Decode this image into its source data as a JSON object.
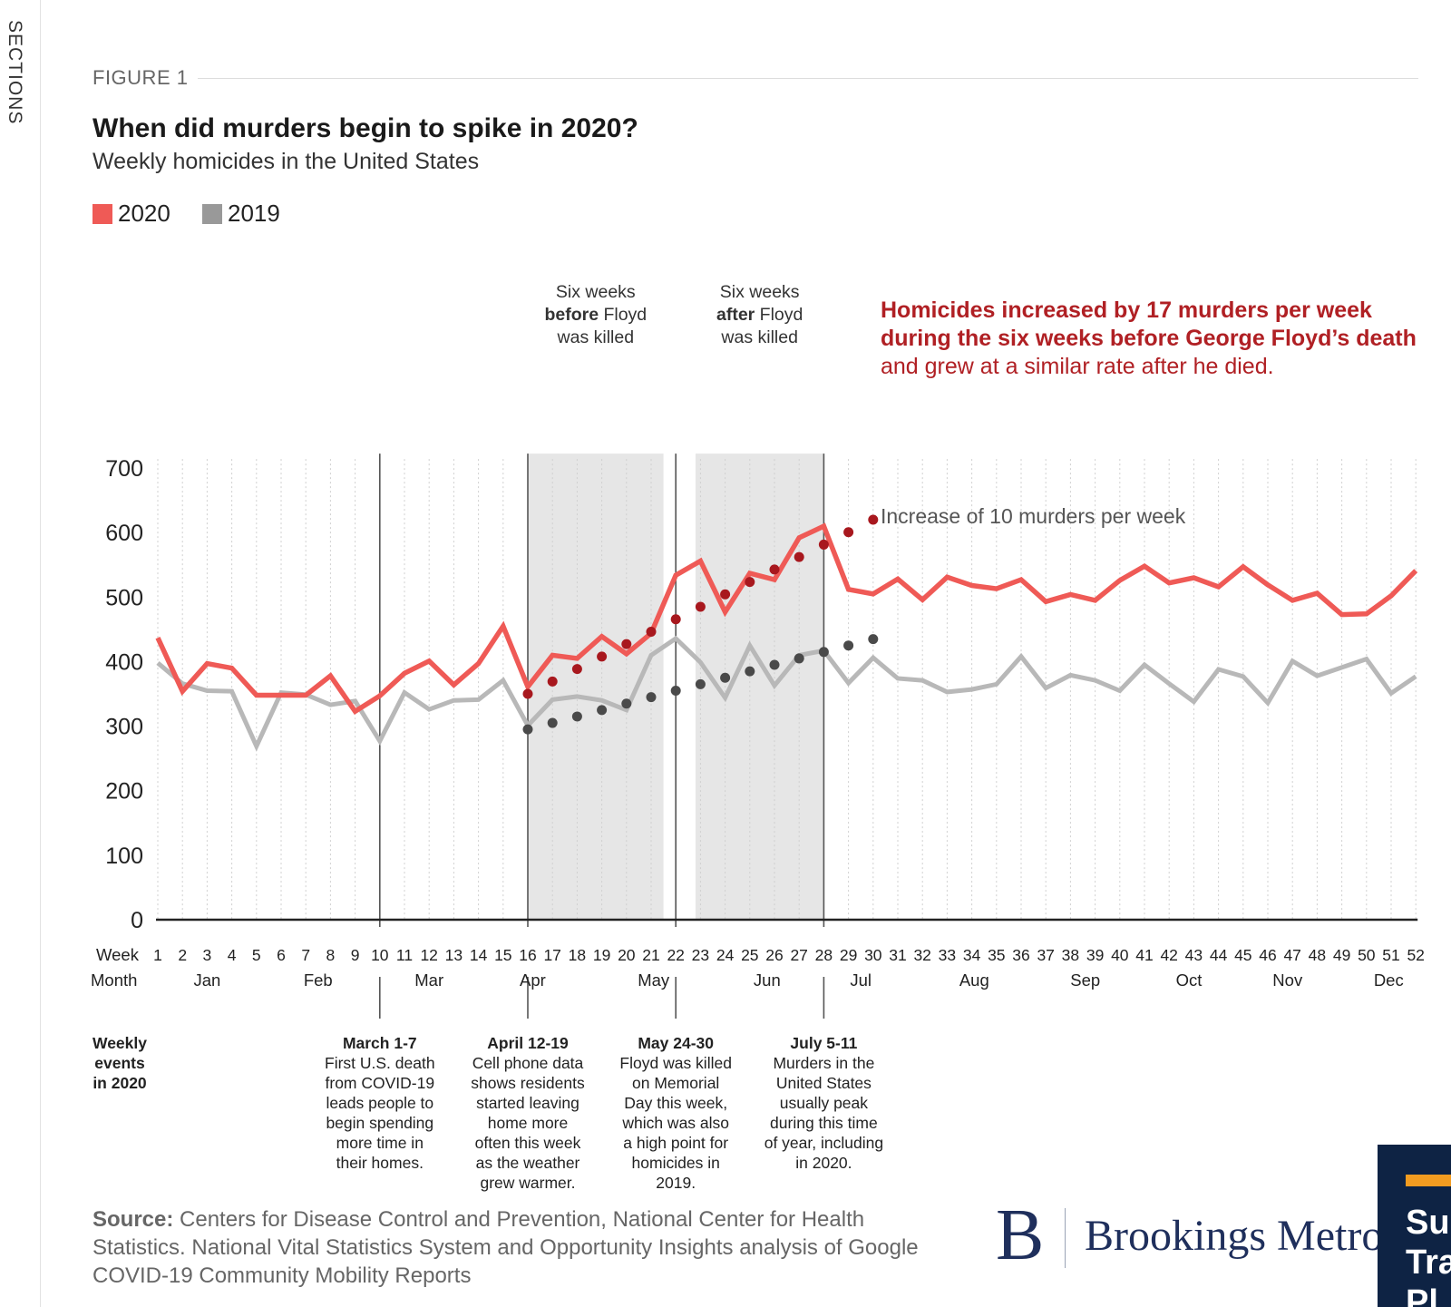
{
  "sidebar": {
    "label": "SECTIONS"
  },
  "figure": {
    "label": "FIGURE 1",
    "title": "When did murders begin to spike in 2020?",
    "subtitle": "Weekly homicides in the United States"
  },
  "legend": [
    {
      "label": "2020",
      "color": "#ef5a56"
    },
    {
      "label": "2019",
      "color": "#999999"
    }
  ],
  "chart_data": {
    "type": "line",
    "x_label": "Week",
    "month_label": "Month",
    "x": [
      1,
      2,
      3,
      4,
      5,
      6,
      7,
      8,
      9,
      10,
      11,
      12,
      13,
      14,
      15,
      16,
      17,
      18,
      19,
      20,
      21,
      22,
      23,
      24,
      25,
      26,
      27,
      28,
      29,
      30,
      31,
      32,
      33,
      34,
      35,
      36,
      37,
      38,
      39,
      40,
      41,
      42,
      43,
      44,
      45,
      46,
      47,
      48,
      49,
      50,
      51,
      52
    ],
    "ylim": [
      0,
      700
    ],
    "y_ticks": [
      0,
      100,
      200,
      300,
      400,
      500,
      600,
      700
    ],
    "months": [
      {
        "label": "Jan",
        "week": 3
      },
      {
        "label": "Feb",
        "week": 7.5
      },
      {
        "label": "Mar",
        "week": 12
      },
      {
        "label": "Apr",
        "week": 16.2
      },
      {
        "label": "May",
        "week": 21.1
      },
      {
        "label": "Jun",
        "week": 25.7
      },
      {
        "label": "Jul",
        "week": 29.5
      },
      {
        "label": "Aug",
        "week": 34.1
      },
      {
        "label": "Sep",
        "week": 38.6
      },
      {
        "label": "Oct",
        "week": 42.8
      },
      {
        "label": "Nov",
        "week": 46.8
      },
      {
        "label": "Dec",
        "week": 50.9
      }
    ],
    "series": [
      {
        "name": "2019",
        "color": "#b8b8b8",
        "values": [
          398,
          366,
          355,
          354,
          269,
          352,
          349,
          333,
          339,
          277,
          352,
          326,
          340,
          341,
          371,
          301,
          341,
          346,
          340,
          325,
          410,
          436,
          399,
          344,
          425,
          363,
          410,
          417,
          367,
          406,
          374,
          371,
          353,
          357,
          365,
          408,
          359,
          379,
          371,
          355,
          395,
          366,
          338,
          388,
          377,
          336,
          401,
          378,
          391,
          404,
          351,
          377
        ]
      },
      {
        "name": "2020",
        "color": "#ef5a56",
        "values": [
          437,
          354,
          397,
          390,
          348,
          348,
          348,
          378,
          323,
          347,
          382,
          401,
          364,
          397,
          455,
          361,
          410,
          405,
          439,
          412,
          444,
          534,
          556,
          477,
          537,
          527,
          592,
          610,
          512,
          505,
          528,
          496,
          531,
          518,
          513,
          527,
          493,
          504,
          495,
          526,
          548,
          522,
          530,
          516,
          547,
          519,
          495,
          506,
          473,
          474,
          502,
          541
        ]
      }
    ],
    "trends": [
      {
        "name": "2020 trend",
        "color": "#a8181e",
        "start_week": 16,
        "end_week": 30,
        "start_value": 350,
        "end_value": 620
      },
      {
        "name": "2019 trend",
        "color": "#4a4a4a",
        "start_week": 16,
        "end_week": 30,
        "start_value": 295,
        "end_value": 435
      }
    ],
    "shaded_periods": [
      {
        "start_week": 16,
        "end_week": 21.5,
        "line1": "Six weeks",
        "bold_word": "before",
        "rest": " Floyd",
        "line3": "was killed"
      },
      {
        "start_week": 22.8,
        "end_week": 28,
        "line1": "Six weeks",
        "bold_word": "after",
        "rest": " Floyd",
        "line3": "was killed"
      }
    ],
    "event_lines": [
      10,
      16,
      22,
      28
    ],
    "annotations": {
      "red_line1": "Homicides increased by 17 murders per week",
      "red_line2": "during the six weeks before George Floyd’s death",
      "red_line3": "and grew at a similar rate after he died.",
      "gray": "Increase of 10 murders per week"
    }
  },
  "events": {
    "heading_lines": [
      "Weekly",
      "events",
      "in 2020"
    ],
    "items": [
      {
        "week": 10,
        "date": "March 1-7",
        "lines": [
          "First U.S. death",
          "from COVID-19",
          "leads people to",
          "begin spending",
          "more time in",
          "their homes."
        ]
      },
      {
        "week": 16,
        "date": "April 12-19",
        "lines": [
          "Cell phone data",
          "shows residents",
          "started leaving",
          "home more",
          "often this week",
          "as the weather",
          "grew warmer."
        ]
      },
      {
        "week": 22,
        "date": "May 24-30",
        "lines": [
          "Floyd was killed",
          "on Memorial",
          "Day this week,",
          "which was also",
          "a high point for",
          "homicides in",
          "2019."
        ]
      },
      {
        "week": 28,
        "date": "July 5-11",
        "lines": [
          "Murders in the",
          "United States",
          "usually peak",
          "during this time",
          "of year, including",
          "in 2020."
        ]
      }
    ]
  },
  "source": {
    "label": "Source:",
    "text": " Centers for Disease Control and Prevention, National Center for Health Statistics. National Vital Statistics System and Opportunity Insights analysis of Google COVID-19 Community Mobility Reports"
  },
  "brand": {
    "letter": "B",
    "name": "Brookings Metro"
  },
  "promo": {
    "text_lines": [
      "Su",
      "Tra",
      "Pl"
    ]
  }
}
